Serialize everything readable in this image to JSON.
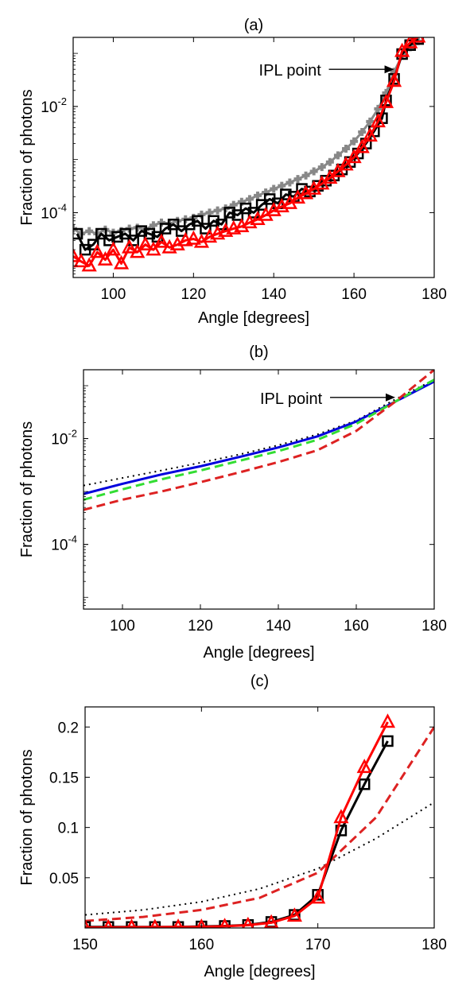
{
  "chart_data": [
    {
      "panel": "a",
      "type": "scatter",
      "title": "(a)",
      "xlabel": "Angle [degrees]",
      "ylabel": "Fraction of photons",
      "yscale": "log",
      "xlim": [
        90,
        180
      ],
      "ylim": [
        6e-06,
        0.2
      ],
      "xticks": [
        100,
        120,
        140,
        160,
        180
      ],
      "yticks": [
        0.0001,
        0.01
      ],
      "ytick_labels": [
        [
          "10",
          "-4"
        ],
        [
          "10",
          "-2"
        ]
      ],
      "annotation": {
        "text": "IPL point",
        "x": 170,
        "y": 0.05
      },
      "series": [
        {
          "color": "#888888",
          "marker": "plus",
          "line": "solid",
          "x": [
            90,
            92,
            94,
            96,
            98,
            100,
            102,
            104,
            106,
            108,
            110,
            112,
            114,
            116,
            118,
            120,
            122,
            124,
            126,
            128,
            130,
            132,
            134,
            136,
            138,
            140,
            142,
            144,
            146,
            148,
            150,
            152,
            154,
            156,
            158,
            160,
            162,
            164,
            166,
            168,
            170,
            172,
            174,
            176
          ],
          "y": [
            5e-05,
            4e-05,
            4.5e-05,
            4e-05,
            4.8e-05,
            4.2e-05,
            4.5e-05,
            5e-05,
            5.2e-05,
            4.8e-05,
            5.8e-05,
            6.5e-05,
            6.2e-05,
            7e-05,
            7.5e-05,
            8e-05,
            9.2e-05,
            0.0001,
            0.00011,
            0.00012,
            0.00014,
            0.00016,
            0.00018,
            0.00021,
            0.00024,
            0.00028,
            0.00032,
            0.00037,
            0.00043,
            0.0005,
            0.0006,
            0.00072,
            0.0009,
            0.0012,
            0.0016,
            0.0022,
            0.0033,
            0.0052,
            0.009,
            0.018,
            0.045,
            0.09,
            0.13,
            0.17
          ]
        },
        {
          "color": "#000000",
          "marker": "square",
          "line": "solid",
          "x": [
            91,
            93,
            95,
            97,
            99,
            101,
            103,
            105,
            107,
            109,
            111,
            113,
            115,
            117,
            119,
            121,
            123,
            125,
            127,
            129,
            131,
            133,
            135,
            137,
            139,
            141,
            143,
            145,
            147,
            149,
            151,
            153,
            155,
            157,
            159,
            161,
            163,
            165,
            167,
            168,
            170,
            172,
            174,
            176
          ],
          "y": [
            4e-05,
            2e-05,
            2.5e-05,
            4e-05,
            3e-05,
            3.5e-05,
            4e-05,
            3e-05,
            4.5e-05,
            4e-05,
            3.5e-05,
            5e-05,
            6e-05,
            4.5e-05,
            6e-05,
            7e-05,
            5e-05,
            7e-05,
            6e-05,
            0.0001,
            9e-05,
            0.00012,
            0.0001,
            0.00014,
            0.00018,
            0.00015,
            0.00022,
            0.0002,
            0.00028,
            0.00025,
            0.00032,
            0.0004,
            0.0005,
            0.00065,
            0.0009,
            0.0013,
            0.002,
            0.0034,
            0.006,
            0.013,
            0.033,
            0.097,
            0.143,
            0.186
          ]
        },
        {
          "color": "#ff0000",
          "marker": "triangle",
          "line": "solid",
          "x": [
            90,
            92,
            94,
            96,
            98,
            100,
            102,
            104,
            106,
            108,
            110,
            112,
            114,
            116,
            118,
            120,
            122,
            124,
            126,
            128,
            130,
            132,
            134,
            136,
            138,
            140,
            142,
            144,
            146,
            148,
            150,
            152,
            154,
            156,
            158,
            160,
            162,
            164,
            166,
            168,
            170,
            172,
            174,
            176
          ],
          "y": [
            1.5e-05,
            1.2e-05,
            1e-05,
            1.8e-05,
            1.3e-05,
            2e-05,
            1.1e-05,
            2.2e-05,
            1.8e-05,
            2.5e-05,
            2e-05,
            2.8e-05,
            2.2e-05,
            2.5e-05,
            3e-05,
            3.2e-05,
            2.8e-05,
            3.5e-05,
            4e-05,
            4.5e-05,
            5e-05,
            5.5e-05,
            6.5e-05,
            7.5e-05,
            9e-05,
            0.00011,
            0.00013,
            0.00015,
            0.00019,
            0.00023,
            0.00028,
            0.00035,
            0.00045,
            0.0006,
            0.0008,
            0.0011,
            0.0017,
            0.0028,
            0.0052,
            0.012,
            0.03,
            0.11,
            0.16,
            0.205
          ]
        }
      ]
    },
    {
      "panel": "b",
      "type": "line",
      "title": "(b)",
      "xlabel": "Angle [degrees]",
      "ylabel": "Fraction of photons",
      "yscale": "log",
      "xlim": [
        90,
        180
      ],
      "ylim": [
        6e-06,
        0.2
      ],
      "xticks": [
        100,
        120,
        140,
        160,
        180
      ],
      "yticks": [
        0.0001,
        0.01
      ],
      "ytick_labels": [
        [
          "10",
          "-4"
        ],
        [
          "10",
          "-2"
        ]
      ],
      "annotation": {
        "text": "IPL point",
        "x": 170,
        "y": 0.06
      },
      "series": [
        {
          "color": "#000000",
          "line": "dotted",
          "x": [
            90,
            100,
            110,
            120,
            130,
            140,
            150,
            160,
            170,
            180
          ],
          "y": [
            0.0013,
            0.0018,
            0.0025,
            0.0035,
            0.005,
            0.0075,
            0.012,
            0.022,
            0.055,
            0.13
          ]
        },
        {
          "color": "#0000dd",
          "line": "solid",
          "x": [
            90,
            100,
            110,
            120,
            130,
            140,
            150,
            160,
            170,
            180
          ],
          "y": [
            0.0009,
            0.0014,
            0.0021,
            0.003,
            0.0045,
            0.0068,
            0.011,
            0.021,
            0.05,
            0.12
          ]
        },
        {
          "color": "#33dd33",
          "line": "dashed",
          "x": [
            90,
            100,
            110,
            120,
            130,
            140,
            150,
            160,
            170,
            180
          ],
          "y": [
            0.0007,
            0.0011,
            0.0017,
            0.0025,
            0.0038,
            0.0058,
            0.0095,
            0.019,
            0.05,
            0.13
          ]
        },
        {
          "color": "#dd2222",
          "line": "dashed",
          "x": [
            90,
            100,
            110,
            120,
            130,
            140,
            150,
            160,
            170,
            180
          ],
          "y": [
            0.00045,
            0.0007,
            0.001,
            0.0015,
            0.0023,
            0.0036,
            0.006,
            0.014,
            0.05,
            0.2
          ]
        }
      ]
    },
    {
      "panel": "c",
      "type": "line",
      "title": "(c)",
      "xlabel": "Angle [degrees]",
      "ylabel": "Fraction of photons",
      "yscale": "linear",
      "xlim": [
        150,
        180
      ],
      "ylim": [
        0,
        0.22
      ],
      "xticks": [
        150,
        160,
        170,
        180
      ],
      "yticks": [
        0.05,
        0.1,
        0.15,
        0.2
      ],
      "ytick_labels": [
        "0.05",
        "0.1",
        "0.15",
        "0.2"
      ],
      "series": [
        {
          "color": "#000000",
          "line": "dotted",
          "x": [
            150,
            155,
            160,
            165,
            170,
            175,
            180
          ],
          "y": [
            0.013,
            0.018,
            0.026,
            0.039,
            0.059,
            0.089,
            0.125
          ]
        },
        {
          "color": "#dd2222",
          "line": "dashed",
          "x": [
            150,
            155,
            160,
            165,
            170,
            175,
            180
          ],
          "y": [
            0.007,
            0.011,
            0.018,
            0.03,
            0.055,
            0.11,
            0.2
          ]
        },
        {
          "color": "#000000",
          "marker": "square",
          "line": "solid",
          "x": [
            150,
            152,
            154,
            156,
            158,
            160,
            162,
            164,
            166,
            168,
            170,
            172,
            174,
            176
          ],
          "y": [
            0.001,
            0.001,
            0.001,
            0.001,
            0.001,
            0.0015,
            0.002,
            0.003,
            0.006,
            0.013,
            0.033,
            0.097,
            0.143,
            0.186
          ]
        },
        {
          "color": "#ff0000",
          "marker": "triangle",
          "line": "solid",
          "x": [
            150,
            152,
            154,
            156,
            158,
            160,
            162,
            164,
            166,
            168,
            170,
            172,
            174,
            176
          ],
          "y": [
            0.0005,
            0.0005,
            0.0008,
            0.0008,
            0.001,
            0.001,
            0.0017,
            0.0028,
            0.0052,
            0.012,
            0.03,
            0.11,
            0.16,
            0.205
          ]
        }
      ]
    }
  ]
}
